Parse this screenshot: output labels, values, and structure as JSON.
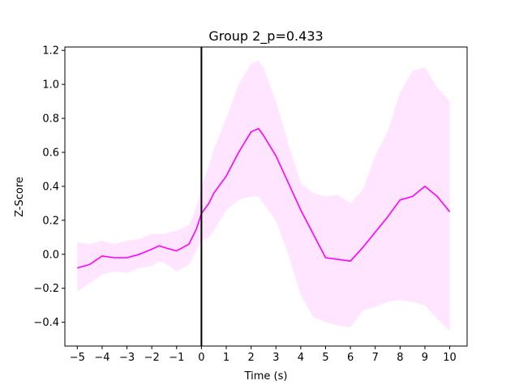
{
  "chart_data": {
    "type": "line",
    "title": "Group 2_p=0.433",
    "xlabel": "Time (s)",
    "ylabel": "Z-Score",
    "xlim": [
      -5.5,
      10.7
    ],
    "ylim": [
      -0.54,
      1.22
    ],
    "xticks": [
      -5,
      -4,
      -3,
      -2,
      -1,
      0,
      1,
      2,
      3,
      4,
      5,
      6,
      7,
      8,
      9,
      10
    ],
    "xtick_labels": [
      "−5",
      "−4",
      "−3",
      "−2",
      "−1",
      "0",
      "1",
      "2",
      "3",
      "4",
      "5",
      "6",
      "7",
      "8",
      "9",
      "10"
    ],
    "yticks": [
      -0.4,
      -0.2,
      0.0,
      0.2,
      0.4,
      0.6,
      0.8,
      1.0,
      1.2
    ],
    "ytick_labels": [
      "−0.4",
      "−0.2",
      "0.0",
      "0.2",
      "0.4",
      "0.6",
      "0.8",
      "1.0",
      "1.2"
    ],
    "grid": false,
    "legend": "none",
    "event_line_x": 0,
    "colors": {
      "mean_line": "#ff00ff",
      "band_fill": "#ff99ff",
      "band_opacity": 0.25,
      "event_line": "#000000"
    },
    "series": [
      {
        "x": [
          -5.0,
          -4.5,
          -4.0,
          -3.5,
          -3.0,
          -2.5,
          -2.0,
          -1.7,
          -1.5,
          -1.0,
          -0.5,
          -0.2,
          0.0,
          0.3,
          0.5,
          1.0,
          1.5,
          2.0,
          2.3,
          2.5,
          3.0,
          3.5,
          4.0,
          4.5,
          5.0,
          5.5,
          6.0,
          6.5,
          7.0,
          7.5,
          8.0,
          8.5,
          9.0,
          9.5,
          10.0
        ],
        "y": [
          -0.08,
          -0.06,
          -0.01,
          -0.02,
          -0.02,
          0.0,
          0.03,
          0.05,
          0.04,
          0.02,
          0.06,
          0.15,
          0.24,
          0.3,
          0.36,
          0.46,
          0.6,
          0.72,
          0.74,
          0.7,
          0.58,
          0.42,
          0.26,
          0.12,
          -0.02,
          -0.03,
          -0.04,
          0.04,
          0.13,
          0.22,
          0.32,
          0.34,
          0.4,
          0.34,
          0.25
        ],
        "upper": [
          0.07,
          0.06,
          0.08,
          0.06,
          0.08,
          0.09,
          0.12,
          0.12,
          0.12,
          0.14,
          0.17,
          0.28,
          0.4,
          0.52,
          0.62,
          0.8,
          1.0,
          1.12,
          1.14,
          1.1,
          0.9,
          0.65,
          0.42,
          0.36,
          0.34,
          0.35,
          0.3,
          0.38,
          0.58,
          0.72,
          0.95,
          1.08,
          1.1,
          0.98,
          0.9
        ],
        "lower": [
          -0.22,
          -0.17,
          -0.12,
          -0.1,
          -0.11,
          -0.08,
          -0.07,
          -0.04,
          -0.05,
          -0.1,
          -0.06,
          0.02,
          0.08,
          0.1,
          0.14,
          0.26,
          0.32,
          0.34,
          0.34,
          0.3,
          0.2,
          0.0,
          -0.24,
          -0.37,
          -0.4,
          -0.42,
          -0.43,
          -0.33,
          -0.31,
          -0.28,
          -0.27,
          -0.28,
          -0.3,
          -0.38,
          -0.45
        ]
      }
    ]
  }
}
